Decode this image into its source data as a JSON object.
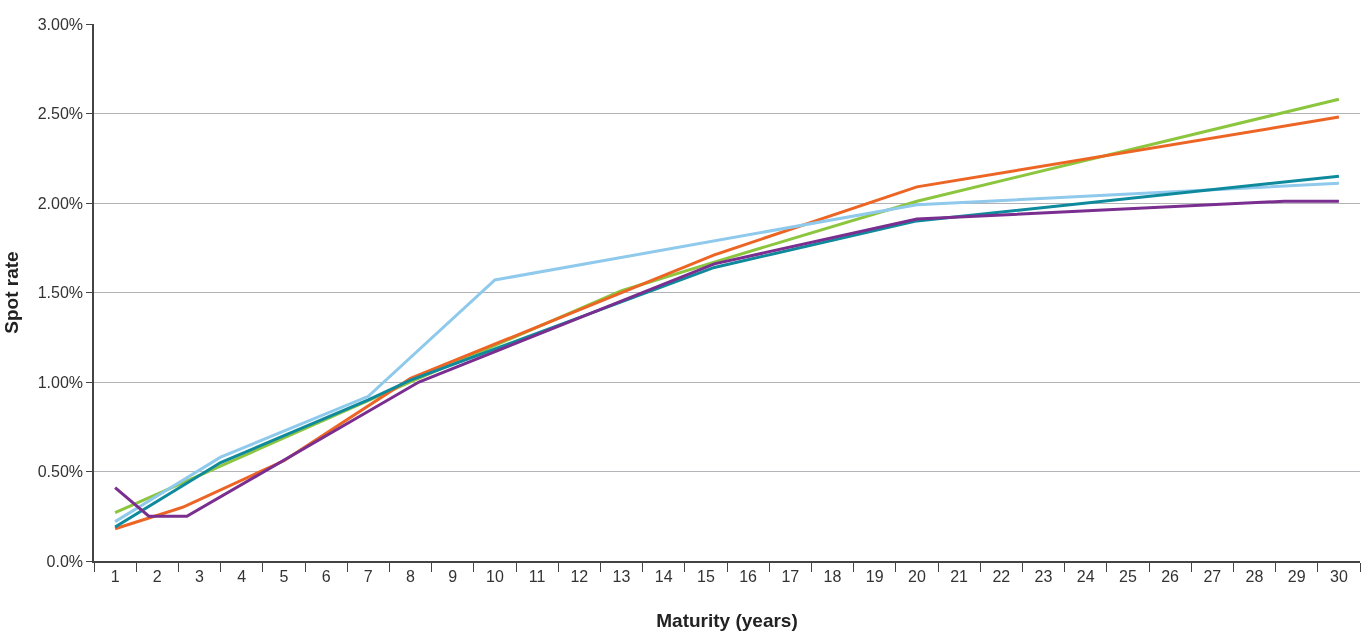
{
  "chart_data": {
    "type": "line",
    "xlabel": "Maturity (years)",
    "ylabel": "Spot rate",
    "xlim": [
      0.5,
      30.5
    ],
    "xticks": [
      1,
      2,
      3,
      4,
      5,
      6,
      7,
      8,
      9,
      10,
      11,
      12,
      13,
      14,
      15,
      16,
      17,
      18,
      19,
      20,
      21,
      22,
      23,
      24,
      25,
      26,
      27,
      28,
      29,
      30
    ],
    "ylim": [
      0,
      3
    ],
    "yticks": [
      {
        "value": 0,
        "label": "0.0%"
      },
      {
        "value": 0.5,
        "label": "0.50%"
      },
      {
        "value": 1,
        "label": "1.00%"
      },
      {
        "value": 1.5,
        "label": "1.50%"
      },
      {
        "value": 2,
        "label": "2.00%"
      },
      {
        "value": 2.5,
        "label": "2.50%"
      },
      {
        "value": 3,
        "label": "3.00%"
      }
    ],
    "grid": "y",
    "marker": "none",
    "line_style": "solid",
    "series": [
      {
        "color": "#8cc63f",
        "x": [
          1,
          8,
          13,
          15.2,
          20,
          30
        ],
        "values": [
          0.27,
          1.0,
          1.51,
          1.67,
          2.01,
          2.58
        ]
      },
      {
        "color": "#ec6525",
        "x": [
          1,
          2.6,
          5,
          8,
          15.2,
          20,
          30
        ],
        "values": [
          0.18,
          0.3,
          0.56,
          1.02,
          1.71,
          2.09,
          2.48
        ]
      },
      {
        "color": "#8fc9ec",
        "x": [
          1,
          3.5,
          7,
          10,
          20,
          30
        ],
        "values": [
          0.22,
          0.58,
          0.92,
          1.57,
          1.99,
          2.11
        ]
      },
      {
        "color": "#0f8a9d",
        "x": [
          1,
          3.5,
          7,
          8,
          15.2,
          20,
          30
        ],
        "values": [
          0.19,
          0.55,
          0.9,
          1.01,
          1.64,
          1.9,
          2.15
        ]
      },
      {
        "color": "#7a2e8f",
        "x": [
          1,
          1.8,
          2.7,
          8.2,
          15.2,
          20,
          28.7,
          30
        ],
        "values": [
          0.41,
          0.25,
          0.25,
          1.0,
          1.66,
          1.91,
          2.01,
          2.01
        ]
      }
    ]
  }
}
